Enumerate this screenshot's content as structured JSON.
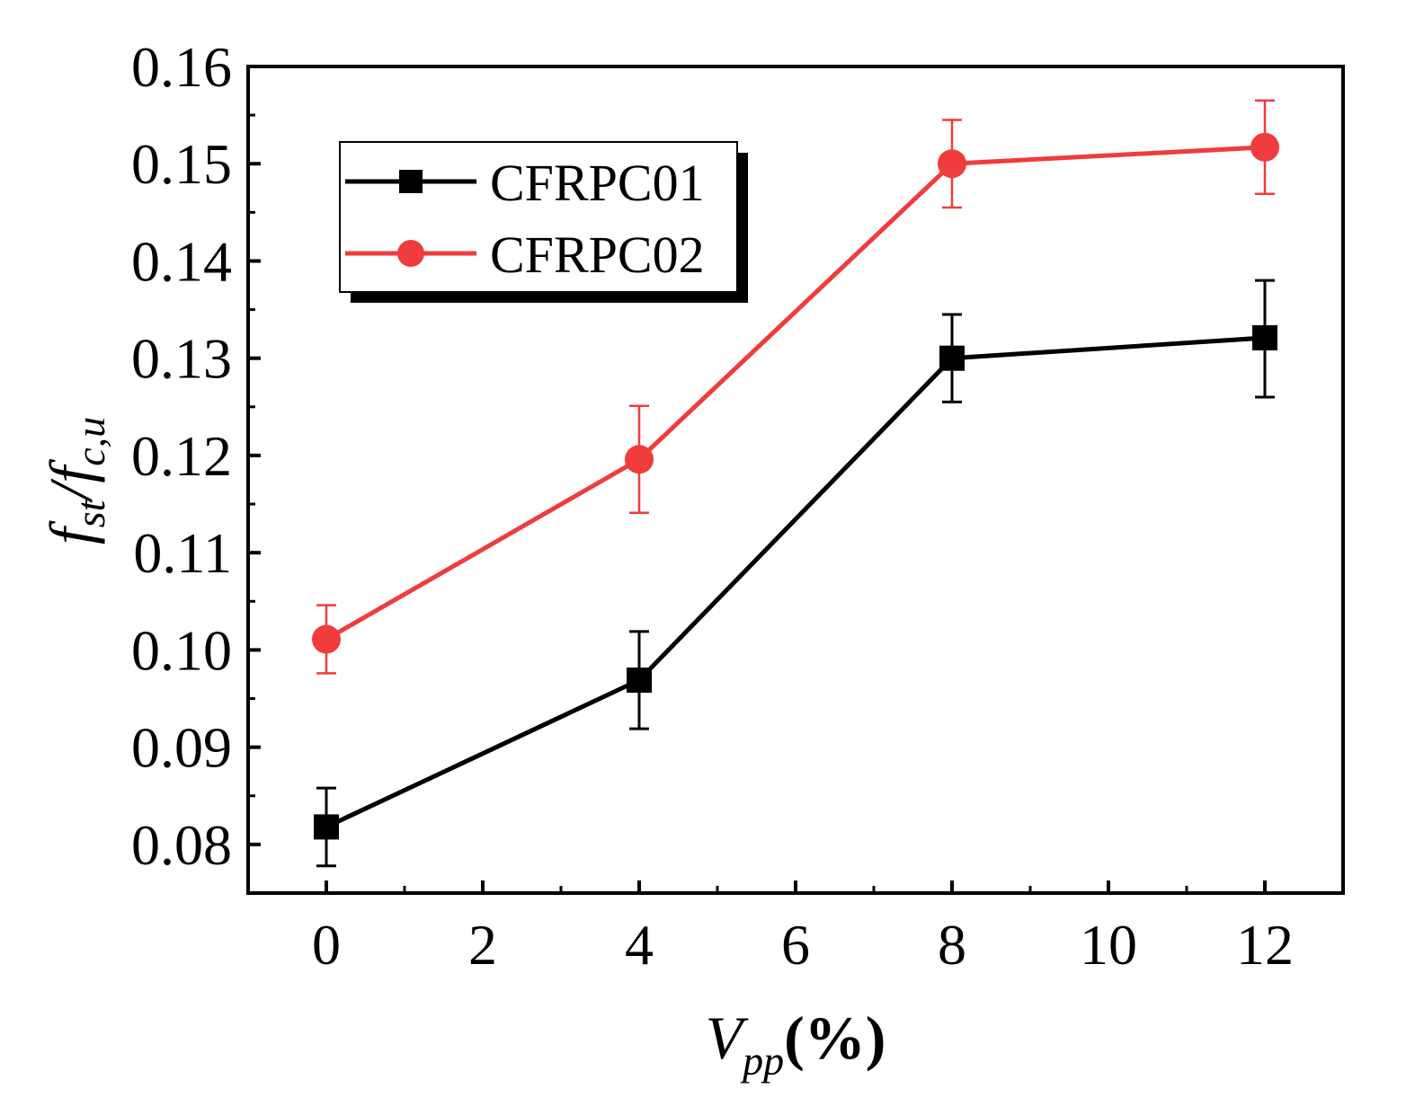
{
  "chart_data": {
    "type": "line",
    "title": "",
    "xlabel": {
      "main": "V",
      "sub": "pp",
      "suffix": "(%)"
    },
    "ylabel": {
      "part1": "f",
      "sub1": "st",
      "slash": "/",
      "part2": "f",
      "sub2": "c,u"
    },
    "xlim": [
      -1,
      13
    ],
    "ylim": [
      0.075,
      0.16
    ],
    "x_ticks": [
      0,
      2,
      4,
      6,
      8,
      10,
      12
    ],
    "x_tick_labels": [
      "0",
      "2",
      "4",
      "6",
      "8",
      "10",
      "12"
    ],
    "y_ticks": [
      0.08,
      0.09,
      0.1,
      0.11,
      0.12,
      0.13,
      0.14,
      0.15,
      0.16
    ],
    "y_tick_labels": [
      "0.08",
      "0.09",
      "0.10",
      "0.11",
      "0.12",
      "0.13",
      "0.14",
      "0.15",
      "0.16"
    ],
    "grid": false,
    "legend_position": "top-left",
    "series": [
      {
        "name": "CFRPC01",
        "color": "#000000",
        "marker": "square",
        "x": [
          0,
          4,
          8,
          12
        ],
        "y": [
          0.0818,
          0.0969,
          0.13,
          0.1321
        ],
        "err_low": [
          0.004,
          0.005,
          0.0045,
          0.0061
        ],
        "err_high": [
          0.004,
          0.005,
          0.0045,
          0.0059
        ]
      },
      {
        "name": "CFRPC02",
        "color": "#f03c3c",
        "marker": "circle",
        "x": [
          0,
          4,
          8,
          12
        ],
        "y": [
          0.1011,
          0.1196,
          0.15,
          0.1517
        ],
        "err_low": [
          0.0035,
          0.0055,
          0.0045,
          0.0048
        ],
        "err_high": [
          0.0035,
          0.0055,
          0.0045,
          0.0048
        ]
      }
    ]
  }
}
